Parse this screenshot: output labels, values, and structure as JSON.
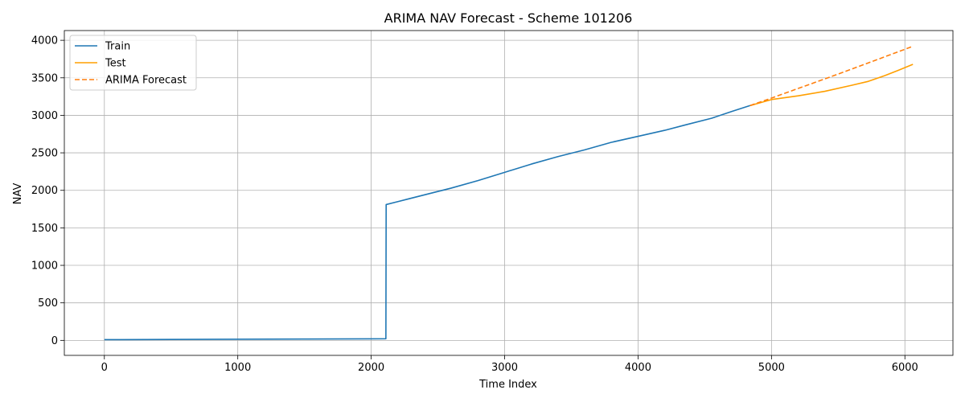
{
  "chart_data": {
    "type": "line",
    "title": "ARIMA NAV Forecast - Scheme 101206",
    "xlabel": "Time Index",
    "ylabel": "NAV",
    "xlim": [
      -300,
      6360
    ],
    "ylim": [
      -200,
      4130
    ],
    "xticks": [
      0,
      1000,
      2000,
      3000,
      4000,
      5000,
      6000
    ],
    "yticks": [
      0,
      500,
      1000,
      1500,
      2000,
      2500,
      3000,
      3500,
      4000
    ],
    "grid": true,
    "legend_position": "top-left",
    "series": [
      {
        "name": "Train",
        "color": "#1f77b4",
        "dash": "solid",
        "points": [
          [
            0,
            10
          ],
          [
            120,
            10
          ],
          [
            500,
            12
          ],
          [
            1000,
            15
          ],
          [
            1500,
            18
          ],
          [
            2000,
            20
          ],
          [
            2110,
            22
          ],
          [
            2112,
            1810
          ],
          [
            2200,
            1850
          ],
          [
            2400,
            1940
          ],
          [
            2600,
            2030
          ],
          [
            2800,
            2130
          ],
          [
            3000,
            2240
          ],
          [
            3200,
            2350
          ],
          [
            3400,
            2450
          ],
          [
            3600,
            2540
          ],
          [
            3800,
            2640
          ],
          [
            4000,
            2720
          ],
          [
            4200,
            2800
          ],
          [
            4350,
            2870
          ],
          [
            4550,
            2960
          ],
          [
            4700,
            3050
          ],
          [
            4840,
            3130
          ]
        ]
      },
      {
        "name": "Test",
        "color": "#ff9f00",
        "dash": "solid",
        "points": [
          [
            4840,
            3130
          ],
          [
            5000,
            3210
          ],
          [
            5200,
            3260
          ],
          [
            5400,
            3320
          ],
          [
            5600,
            3400
          ],
          [
            5720,
            3450
          ],
          [
            5850,
            3530
          ],
          [
            5950,
            3600
          ],
          [
            6060,
            3680
          ]
        ]
      },
      {
        "name": "ARIMA Forecast",
        "color": "#ff7f0e",
        "dash": "dashed",
        "points": [
          [
            4840,
            3130
          ],
          [
            5000,
            3230
          ],
          [
            5500,
            3550
          ],
          [
            6060,
            3920
          ]
        ]
      }
    ]
  }
}
